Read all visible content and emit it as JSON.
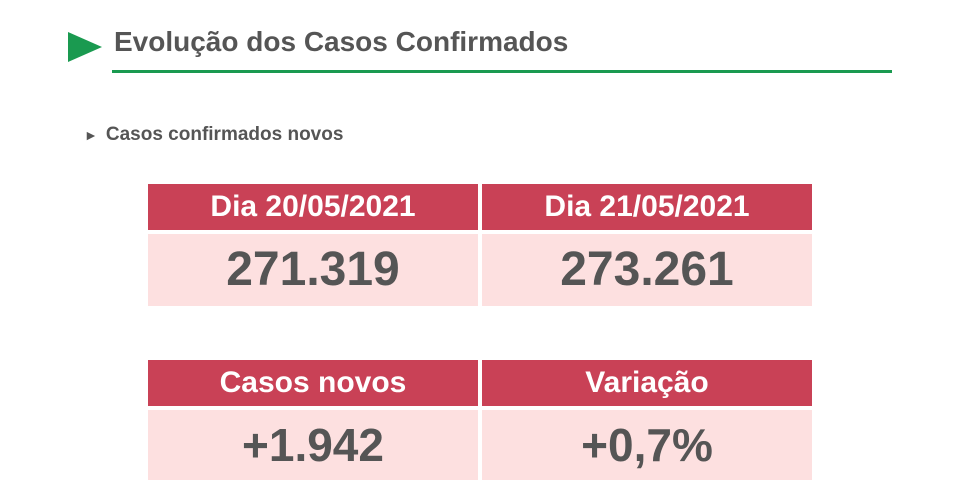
{
  "header": {
    "title": "Evolução dos Casos Confirmados"
  },
  "section": {
    "title": "Casos confirmados novos"
  },
  "tables": [
    {
      "headers": [
        "Dia 20/05/2021",
        "Dia 21/05/2021"
      ],
      "values": [
        "271.319",
        "273.261"
      ]
    },
    {
      "headers": [
        "Casos novos",
        "Variação"
      ],
      "values": [
        "+1.942",
        "+0,7%"
      ]
    }
  ]
}
